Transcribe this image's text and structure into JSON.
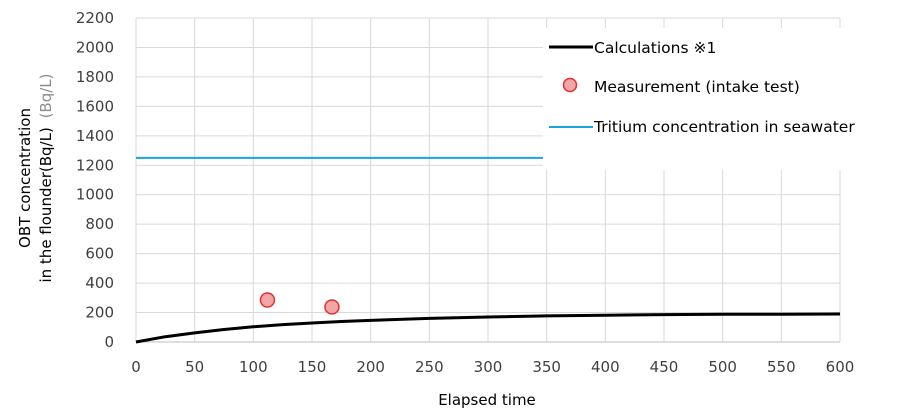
{
  "chart_data": {
    "type": "line",
    "xlabel": "Elapsed time",
    "ylabel_line1": "OBT concentration",
    "ylabel_line2": "in the flounder(Bq/L)",
    "ylabel_unit": "(Bq/L)",
    "xlim": [
      0,
      600
    ],
    "ylim": [
      0,
      2200
    ],
    "xticks": [
      0,
      50,
      100,
      150,
      200,
      250,
      300,
      350,
      400,
      450,
      500,
      550,
      600
    ],
    "yticks": [
      0,
      200,
      400,
      600,
      800,
      1000,
      1200,
      1400,
      1600,
      1800,
      2000,
      2200
    ],
    "grid": true,
    "legend_position": "top-right",
    "series": [
      {
        "name": "Calculations ※1",
        "kind": "line",
        "color": "#000000",
        "x": [
          0,
          25,
          50,
          75,
          100,
          125,
          150,
          175,
          200,
          250,
          300,
          350,
          400,
          450,
          500,
          550,
          600
        ],
        "y": [
          0,
          36,
          62,
          85,
          103,
          118,
          129,
          139,
          147,
          160,
          170,
          177,
          182,
          186,
          188,
          189,
          190
        ]
      },
      {
        "name": "Measurement (intake test)",
        "kind": "scatter",
        "color": "#f4a6a6",
        "edge_color": "#e03030",
        "x": [
          112,
          167
        ],
        "y": [
          285,
          238
        ]
      },
      {
        "name": "Tritium concentration in seawater",
        "kind": "hline",
        "color": "#1aa3e0",
        "y": 1250
      }
    ]
  }
}
